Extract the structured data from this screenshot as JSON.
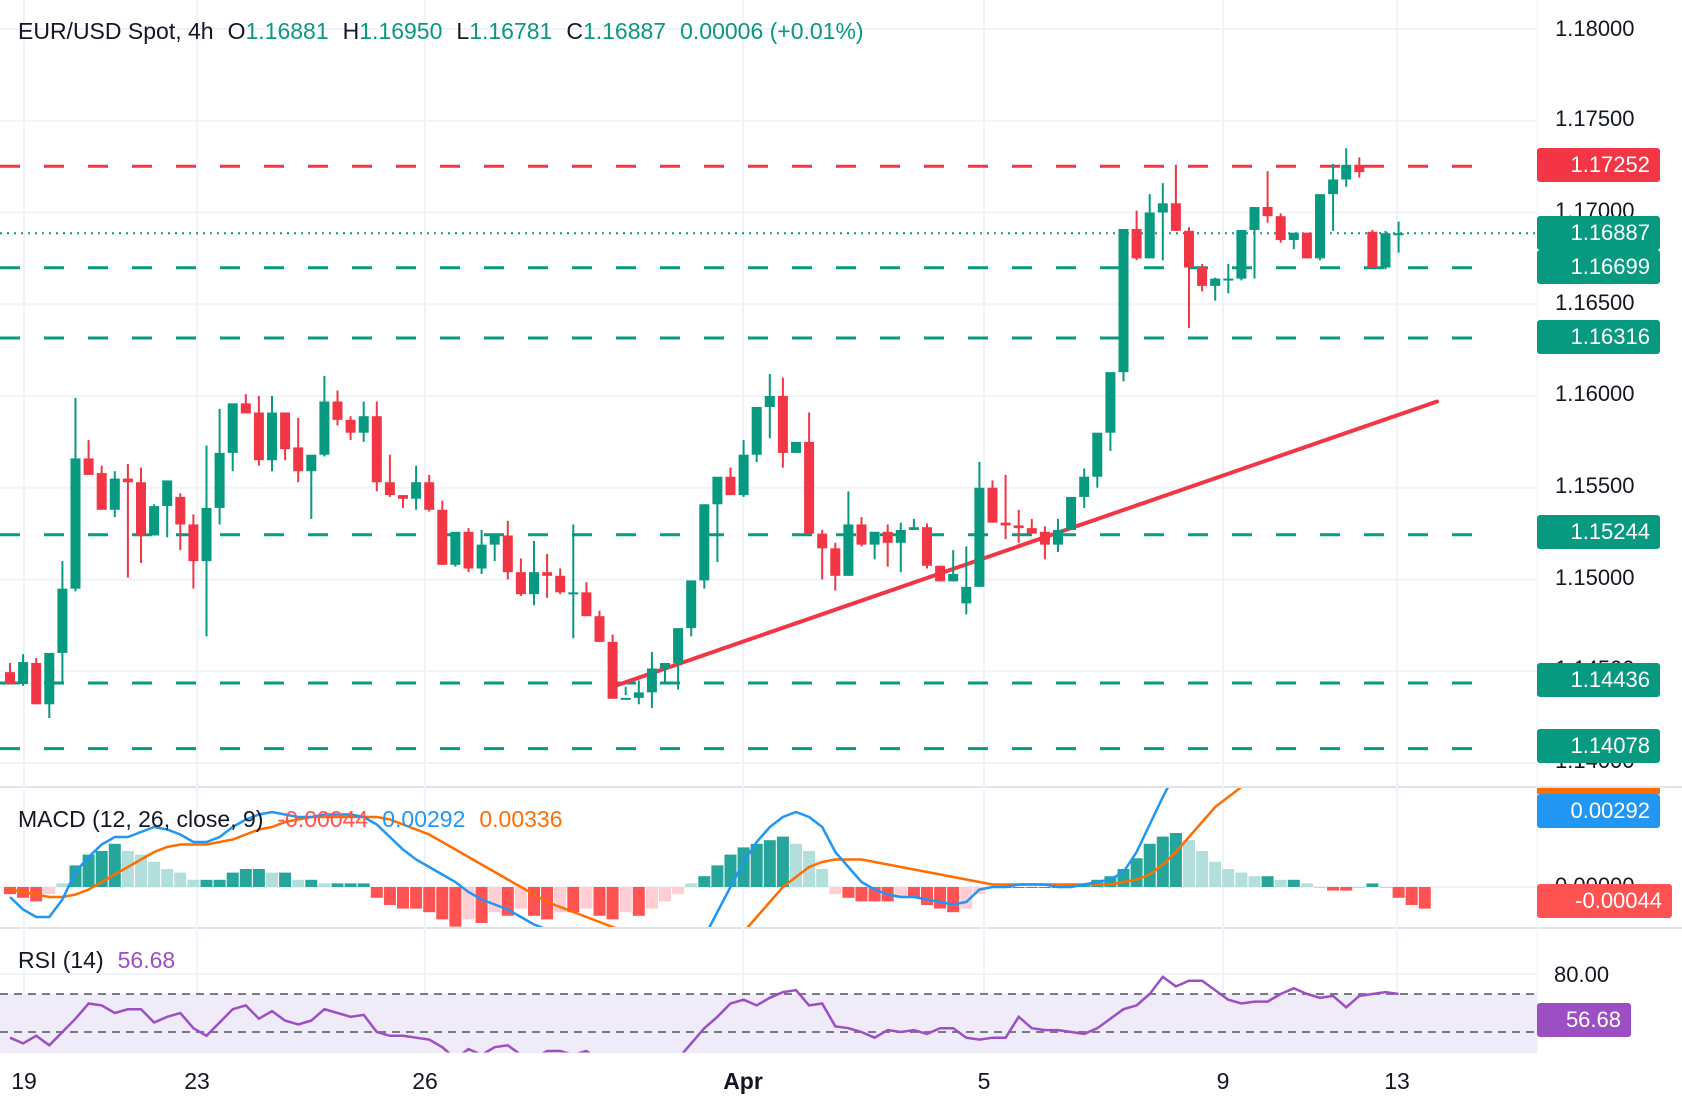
{
  "header": {
    "symbol": "EUR/USD Spot, 4h",
    "open_label": "O",
    "open": "1.16881",
    "high_label": "H",
    "high": "1.16950",
    "low_label": "L",
    "low": "1.16781",
    "close_label": "C",
    "close": "1.16887",
    "change": "0.00006 (+0.01%)"
  },
  "macd_legend": {
    "title": "MACD (12, 26, close, 9)",
    "histogram": "-0.00044",
    "macd": "0.00292",
    "signal": "0.00336"
  },
  "rsi_legend": {
    "title": "RSI (14)",
    "value": "56.68"
  },
  "price_axis": [
    "1.18000",
    "1.17500",
    "1.17000",
    "1.16500",
    "1.16000",
    "1.15500",
    "1.15000",
    "1.14500",
    "1.14000"
  ],
  "price_tags": [
    {
      "value": "1.17252",
      "color": "#f23645"
    },
    {
      "value": "1.16887",
      "color": "#089981"
    },
    {
      "value": "1.16699",
      "color": "#089981"
    },
    {
      "value": "1.16316",
      "color": "#089981"
    },
    {
      "value": "1.15244",
      "color": "#089981"
    },
    {
      "value": "1.14436",
      "color": "#089981"
    },
    {
      "value": "1.14078",
      "color": "#089981"
    }
  ],
  "macd_tags": [
    {
      "value": "0.00292",
      "color": "#2196f3"
    },
    {
      "value": "-0.00044",
      "color": "#ff5252"
    }
  ],
  "macd_axis": [
    "0.00000"
  ],
  "rsi_axis": [
    "80.00"
  ],
  "rsi_tag": {
    "value": "56.68",
    "color": "#9c4fc3"
  },
  "x_axis": [
    {
      "label": "19",
      "bold": false
    },
    {
      "label": "23",
      "bold": false
    },
    {
      "label": "26",
      "bold": false
    },
    {
      "label": "Apr",
      "bold": true
    },
    {
      "label": "5",
      "bold": false
    },
    {
      "label": "9",
      "bold": false
    },
    {
      "label": "13",
      "bold": false
    }
  ],
  "colors": {
    "up": "#089981",
    "down": "#f23645",
    "resistance": "#f23645",
    "support": "#089981",
    "trendline": "#f23645",
    "macd_line": "#2196f3",
    "signal_line": "#ff6d00",
    "hist_up_strong": "#26a69a",
    "hist_up_weak": "#b2dfdb",
    "hist_down_strong": "#ff5252",
    "hist_down_weak": "#ffcdd2",
    "rsi_line": "#9c4fc3",
    "rsi_band": "#f0ebf8"
  },
  "chart_data": {
    "type": "candlestick",
    "title": "EUR/USD Spot, 4h",
    "xlabel": "",
    "ylabel": "",
    "ylim": [
      1.1395,
      1.1815
    ],
    "x_tick_labels": [
      "19",
      "23",
      "26",
      "Apr",
      "5",
      "9",
      "13"
    ],
    "grid": true,
    "horizontal_levels": [
      {
        "price": 1.17252,
        "type": "resistance",
        "style": "dashed",
        "color": "#f23645"
      },
      {
        "price": 1.16699,
        "type": "support",
        "style": "dashed",
        "color": "#089981"
      },
      {
        "price": 1.16316,
        "type": "support",
        "style": "dashed",
        "color": "#089981"
      },
      {
        "price": 1.15244,
        "type": "support",
        "style": "dashed",
        "color": "#089981"
      },
      {
        "price": 1.14436,
        "type": "support",
        "style": "dashed",
        "color": "#089981"
      },
      {
        "price": 1.14078,
        "type": "support",
        "style": "dashed",
        "color": "#089981"
      }
    ],
    "last_price": 1.16887,
    "trendline": {
      "from": {
        "candle": 46,
        "price": 1.1441
      },
      "to": {
        "candle": 102,
        "price": 1.1597
      }
    },
    "candles_ohlc": [
      [
        1.14495,
        1.14545,
        1.14428,
        1.1443
      ],
      [
        1.1443,
        1.14593,
        1.1442,
        1.1455
      ],
      [
        1.14545,
        1.14572,
        1.1432,
        1.1432
      ],
      [
        1.1432,
        1.14485,
        1.14245,
        1.146
      ],
      [
        1.146,
        1.151,
        1.1443,
        1.1495
      ],
      [
        1.1495,
        1.1599,
        1.14935,
        1.1566
      ],
      [
        1.1566,
        1.1576,
        1.1557,
        1.1557
      ],
      [
        1.1558,
        1.1562,
        1.1538,
        1.1538
      ],
      [
        1.1538,
        1.1559,
        1.1534,
        1.1555
      ],
      [
        1.1555,
        1.1563,
        1.1501,
        1.1553
      ],
      [
        1.1553,
        1.1561,
        1.1509,
        1.1524
      ],
      [
        1.1524,
        1.1541,
        1.1524,
        1.154
      ],
      [
        1.154,
        1.1541,
        1.1523,
        1.1554
      ],
      [
        1.1545,
        1.1547,
        1.1516,
        1.153
      ],
      [
        1.153,
        1.15355,
        1.1495,
        1.151
      ],
      [
        1.151,
        1.1573,
        1.1469,
        1.1539
      ],
      [
        1.1539,
        1.1593,
        1.153,
        1.1569
      ],
      [
        1.1569,
        1.1591,
        1.1559,
        1.1596
      ],
      [
        1.1596,
        1.1601,
        1.1595,
        1.15905
      ],
      [
        1.1591,
        1.16,
        1.1562,
        1.1565
      ],
      [
        1.1565,
        1.16,
        1.1559,
        1.1591
      ],
      [
        1.1591,
        1.1591,
        1.1565,
        1.1571
      ],
      [
        1.1572,
        1.1588,
        1.1553,
        1.1559
      ],
      [
        1.1559,
        1.1566,
        1.1533,
        1.1568
      ],
      [
        1.1568,
        1.1611,
        1.1567,
        1.1597
      ],
      [
        1.1597,
        1.1603,
        1.1584,
        1.1587
      ],
      [
        1.1587,
        1.1589,
        1.1576,
        1.158
      ],
      [
        1.158,
        1.1597,
        1.1575,
        1.1589
      ],
      [
        1.1589,
        1.1597,
        1.1548,
        1.1553
      ],
      [
        1.1553,
        1.1568,
        1.1545,
        1.1546
      ],
      [
        1.1546,
        1.1546,
        1.1539,
        1.1544
      ],
      [
        1.1544,
        1.1562,
        1.1538,
        1.1553
      ],
      [
        1.1553,
        1.1557,
        1.1537,
        1.1538
      ],
      [
        1.1538,
        1.1543,
        1.1508,
        1.1508
      ],
      [
        1.1508,
        1.1521,
        1.1507,
        1.1526
      ],
      [
        1.1526,
        1.1528,
        1.1504,
        1.1506
      ],
      [
        1.1506,
        1.1527,
        1.1503,
        1.1519
      ],
      [
        1.1519,
        1.1523,
        1.151,
        1.1524
      ],
      [
        1.1524,
        1.1532,
        1.15,
        1.1504
      ],
      [
        1.1504,
        1.15115,
        1.1491,
        1.1492
      ],
      [
        1.1492,
        1.1521,
        1.1486,
        1.1504
      ],
      [
        1.1504,
        1.1514,
        1.149,
        1.1502
      ],
      [
        1.1502,
        1.1506,
        1.1492,
        1.1493
      ],
      [
        1.1493,
        1.153,
        1.1468,
        1.1493
      ],
      [
        1.1493,
        1.14985,
        1.148,
        1.148
      ],
      [
        1.148,
        1.1483,
        1.1467,
        1.1466
      ],
      [
        1.1466,
        1.147,
        1.1435,
        1.1435
      ],
      [
        1.1435,
        1.14415,
        1.1437,
        1.14355
      ],
      [
        1.14355,
        1.1445,
        1.1432,
        1.14385
      ],
      [
        1.14385,
        1.14605,
        1.143,
        1.14515
      ],
      [
        1.14515,
        1.14535,
        1.1443,
        1.14545
      ],
      [
        1.14545,
        1.14545,
        1.144,
        1.14735
      ],
      [
        1.14735,
        1.14965,
        1.1469,
        1.14995
      ],
      [
        1.14995,
        1.1541,
        1.1495,
        1.1541
      ],
      [
        1.1541,
        1.15425,
        1.15095,
        1.1556
      ],
      [
        1.1556,
        1.1561,
        1.155,
        1.1546
      ],
      [
        1.1546,
        1.1576,
        1.1545,
        1.1568
      ],
      [
        1.1568,
        1.1594,
        1.1564,
        1.1594
      ],
      [
        1.1594,
        1.1612,
        1.1577,
        1.16
      ],
      [
        1.16,
        1.161,
        1.1561,
        1.1569
      ],
      [
        1.1569,
        1.1574,
        1.1569,
        1.1575
      ],
      [
        1.1575,
        1.1591,
        1.1526,
        1.1525
      ],
      [
        1.1525,
        1.1527,
        1.15,
        1.1517
      ],
      [
        1.1517,
        1.152,
        1.1494,
        1.1502
      ],
      [
        1.1502,
        1.1548,
        1.1502,
        1.153
      ],
      [
        1.153,
        1.1534,
        1.1518,
        1.1519
      ],
      [
        1.1519,
        1.152,
        1.1511,
        1.1526
      ],
      [
        1.1526,
        1.153,
        1.1507,
        1.152
      ],
      [
        1.152,
        1.1531,
        1.1504,
        1.1527
      ],
      [
        1.1527,
        1.1533,
        1.1527,
        1.15285
      ],
      [
        1.15285,
        1.15305,
        1.1506,
        1.15075
      ],
      [
        1.15075,
        1.15075,
        1.1499,
        1.1499
      ],
      [
        1.1499,
        1.1516,
        1.1499,
        1.1503
      ],
      [
        1.1487,
        1.1518,
        1.1481,
        1.1496
      ],
      [
        1.1496,
        1.1564,
        1.1496,
        1.155
      ],
      [
        1.155,
        1.1554,
        1.1531,
        1.1531
      ],
      [
        1.1531,
        1.1557,
        1.1522,
        1.15295
      ],
      [
        1.15295,
        1.1538,
        1.152,
        1.1528
      ],
      [
        1.1528,
        1.1533,
        1.1525,
        1.1525
      ],
      [
        1.1526,
        1.1529,
        1.1511,
        1.1519
      ],
      [
        1.1519,
        1.1533,
        1.1515,
        1.1527
      ],
      [
        1.1527,
        1.15425,
        1.1527,
        1.1545
      ],
      [
        1.1545,
        1.15605,
        1.1539,
        1.1556
      ],
      [
        1.1556,
        1.1569,
        1.155,
        1.158
      ],
      [
        1.158,
        1.16125,
        1.157,
        1.1613
      ],
      [
        1.1613,
        1.169,
        1.1608,
        1.1691
      ],
      [
        1.1691,
        1.1701,
        1.1674,
        1.1675
      ],
      [
        1.1675,
        1.171,
        1.1675,
        1.17
      ],
      [
        1.17,
        1.1716,
        1.1674,
        1.1705
      ],
      [
        1.1705,
        1.1726,
        1.169,
        1.169
      ],
      [
        1.169,
        1.1692,
        1.1637,
        1.167
      ],
      [
        1.167,
        1.1672,
        1.1657,
        1.166
      ],
      [
        1.166,
        1.16645,
        1.1652,
        1.1664
      ],
      [
        1.1664,
        1.1672,
        1.1656,
        1.1664
      ],
      [
        1.1664,
        1.16905,
        1.1663,
        1.16905
      ],
      [
        1.16905,
        1.16965,
        1.1664,
        1.1703
      ],
      [
        1.1703,
        1.17225,
        1.16945,
        1.1698
      ],
      [
        1.1698,
        1.16995,
        1.16835,
        1.1685
      ],
      [
        1.1685,
        1.16875,
        1.168,
        1.1689
      ],
      [
        1.1689,
        1.1689,
        1.1675,
        1.1675
      ],
      [
        1.1675,
        1.171,
        1.1674,
        1.171
      ],
      [
        1.171,
        1.17265,
        1.169,
        1.1718
      ],
      [
        1.1718,
        1.1735,
        1.1714,
        1.1726
      ],
      [
        1.1726,
        1.173,
        1.1719,
        1.1722
      ],
      [
        1.16895,
        1.16905,
        1.167,
        1.167
      ],
      [
        1.167,
        1.169,
        1.1669,
        1.16887
      ],
      [
        1.16881,
        1.1695,
        1.16781,
        1.16887
      ]
    ],
    "macd": {
      "params": "12, 26, close, 9",
      "histogram_last": -0.00044,
      "macd_last": 0.00292,
      "signal_last": 0.00336
    },
    "rsi": {
      "period": 14,
      "last": 56.68,
      "levels": [
        70,
        50
      ],
      "axis_tick": 80
    }
  }
}
